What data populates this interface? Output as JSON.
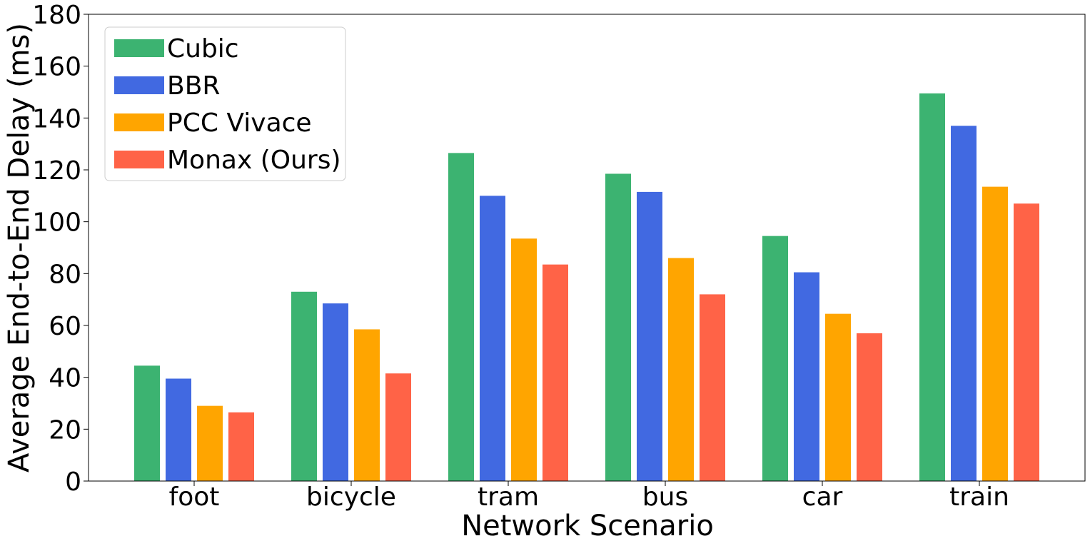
{
  "chart_data": {
    "type": "bar",
    "title": "",
    "xlabel": "Network Scenario",
    "ylabel": "Average End-to-End Delay (ms)",
    "ylim": [
      0,
      180
    ],
    "yticks": [
      "0",
      "20",
      "40",
      "60",
      "80",
      "100",
      "120",
      "140",
      "160",
      "180"
    ],
    "categories": [
      "foot",
      "bicycle",
      "tram",
      "bus",
      "car",
      "train"
    ],
    "series": [
      {
        "name": "Cubic",
        "color": "#3cb371",
        "values": [
          44.5,
          73,
          126.5,
          118.5,
          94.5,
          149.5
        ]
      },
      {
        "name": "BBR",
        "color": "#4169e1",
        "values": [
          39.5,
          68.5,
          110,
          111.5,
          80.5,
          137
        ]
      },
      {
        "name": "PCC Vivace",
        "color": "#ffa500",
        "values": [
          29,
          58.5,
          93.5,
          86,
          64.5,
          113.5
        ]
      },
      {
        "name": "Monax (Ours)",
        "color": "#ff6347",
        "values": [
          26.5,
          41.5,
          83.5,
          72,
          57,
          107
        ]
      }
    ],
    "legend_position": "top-left",
    "grid": false
  }
}
